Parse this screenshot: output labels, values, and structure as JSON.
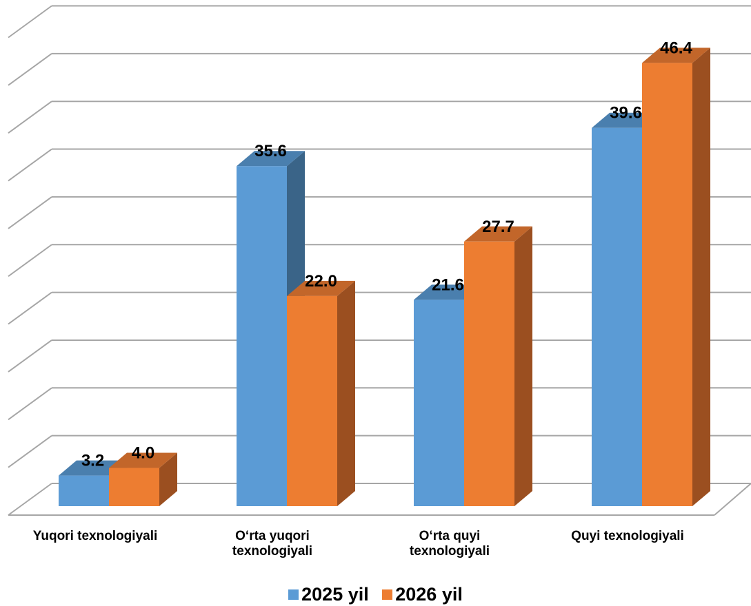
{
  "chart_data": {
    "type": "bar",
    "categories": [
      "Yuqori texnologiyali",
      "O‘rta yuqori\ntexnologiyali",
      "O‘rta quyi\ntexnologiyali",
      "Quyi texnologiyali"
    ],
    "series": [
      {
        "name": "2025 yil",
        "values": [
          3.2,
          35.6,
          21.6,
          39.6
        ],
        "labels": [
          "3.2",
          "35.6",
          "21.6",
          "39.6"
        ]
      },
      {
        "name": "2026 yil",
        "values": [
          4.0,
          22.0,
          27.7,
          46.4
        ],
        "labels": [
          "4.0",
          "22.0",
          "27.7",
          "46.4"
        ]
      }
    ],
    "title": "",
    "xlabel": "",
    "ylabel": "",
    "ylim": [
      0,
      50
    ],
    "grid": true,
    "legend": "bottom",
    "style": "3d-clustered-column",
    "colors": {
      "series": [
        "#5b9bd5",
        "#ed7d31"
      ],
      "series_side": [
        "#3a6488",
        "#9b4f20"
      ],
      "series_top": [
        "#4a7fae",
        "#c2662a"
      ],
      "grid": "#a6a6a6"
    }
  }
}
